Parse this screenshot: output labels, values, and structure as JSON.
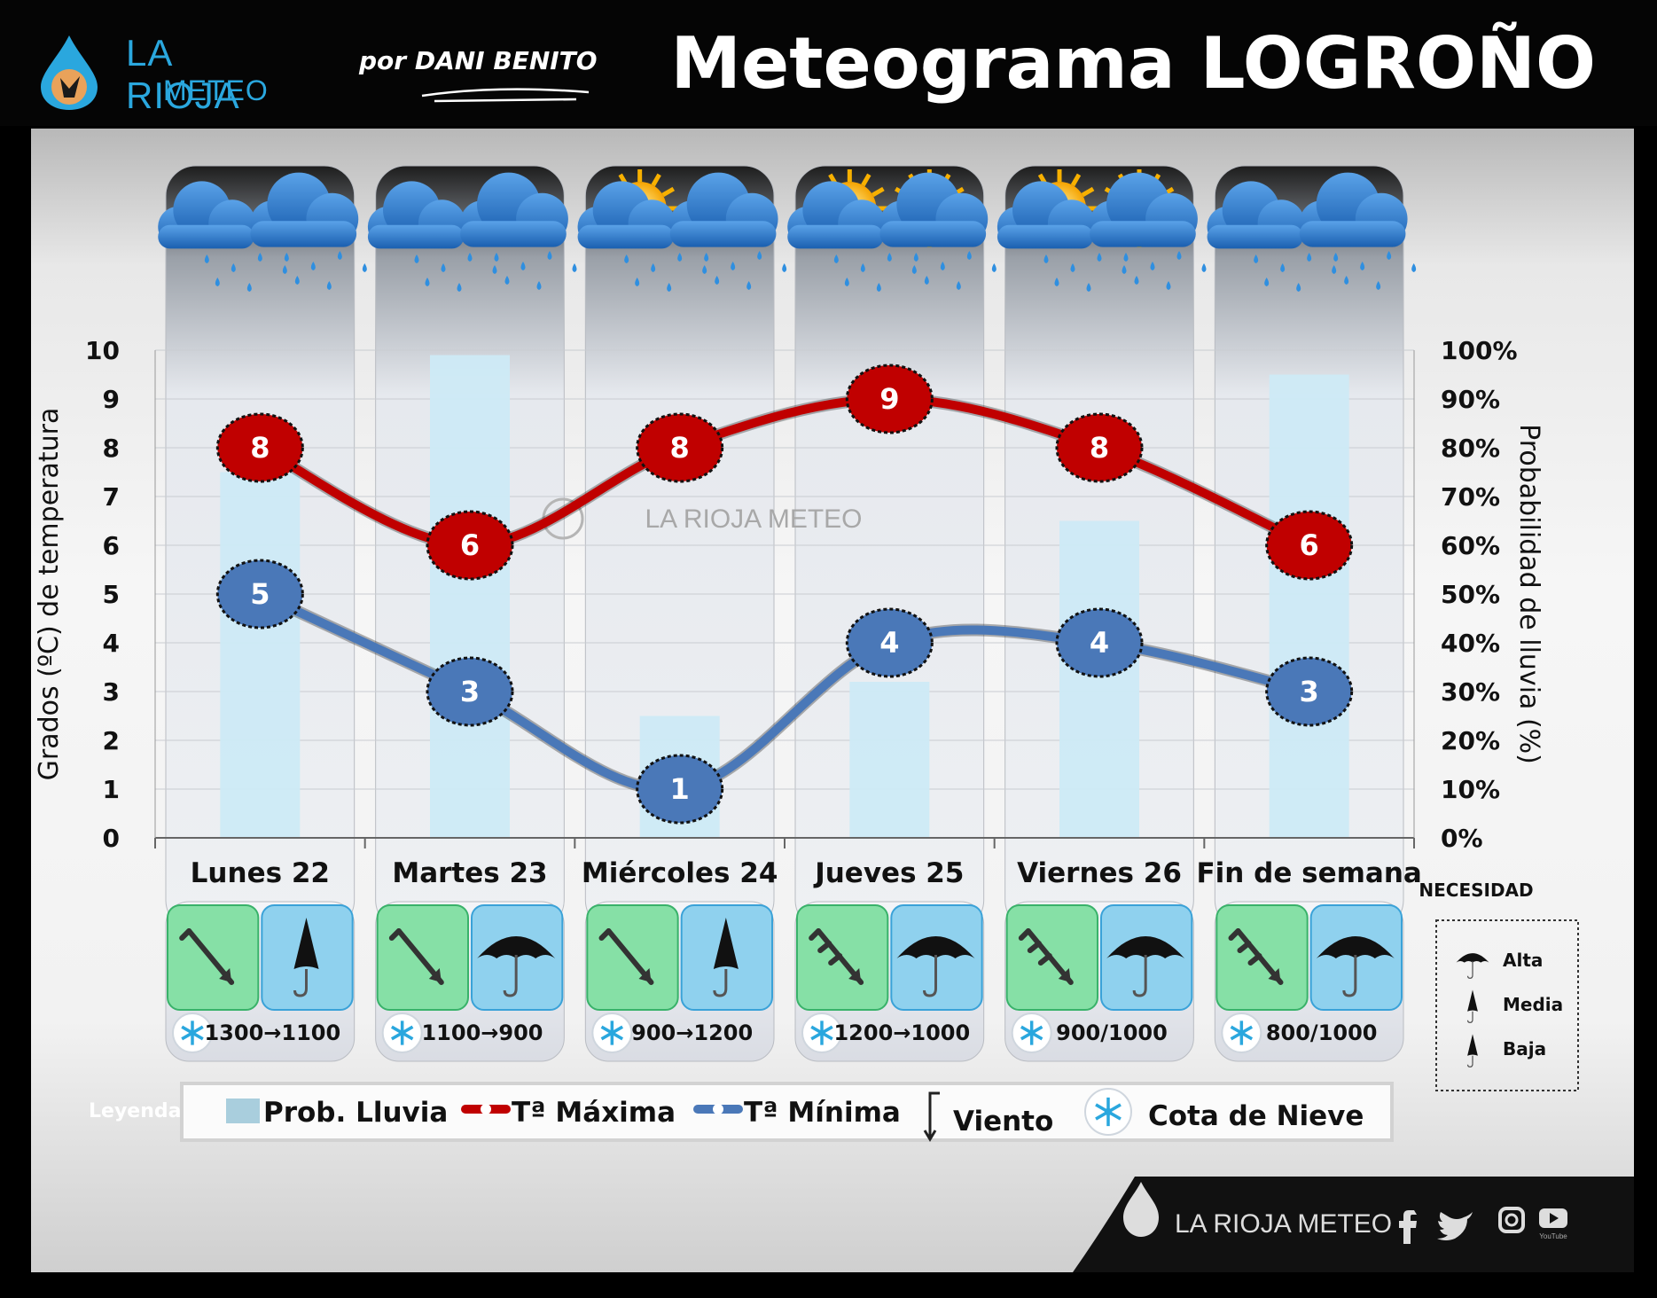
{
  "header": {
    "brand_line1": "LA RIOJA",
    "brand_line2": "METEO",
    "byline": "por DANI BENITO",
    "title": "Meteograma LOGROÑO"
  },
  "chart_data": {
    "type": "line",
    "categories": [
      "Lunes 22",
      "Martes 23",
      "Miércoles 24",
      "Jueves 25",
      "Viernes 26",
      "Fin de semana"
    ],
    "series": [
      {
        "name": "Tª Máxima",
        "type": "line",
        "axis": "left",
        "color": "#c00000",
        "values": [
          8,
          6,
          8,
          9,
          8,
          6
        ]
      },
      {
        "name": "Tª Mínima",
        "type": "line",
        "axis": "left",
        "color": "#4a78b8",
        "values": [
          5,
          3,
          1,
          4,
          4,
          3
        ]
      },
      {
        "name": "Prob. Lluvia",
        "type": "bar",
        "axis": "right",
        "color": "#cdeaf6",
        "values": [
          75,
          99,
          25,
          32,
          65,
          95
        ]
      }
    ],
    "ylabel": "Grados (ºC) de temperatura",
    "ylabel_right": "Probabilidad de lluvia (%)",
    "ylim": [
      0,
      10
    ],
    "ylim_right": [
      0,
      100
    ],
    "yticks": [
      "0",
      "1",
      "2",
      "3",
      "4",
      "5",
      "6",
      "7",
      "8",
      "9",
      "10"
    ],
    "yticks_right": [
      "0%",
      "10%",
      "20%",
      "30%",
      "40%",
      "50%",
      "60%",
      "70%",
      "80%",
      "90%",
      "100%"
    ],
    "grid": true
  },
  "days": [
    {
      "sky": "rain-cloud-icon",
      "wind": "wind-weak-icon",
      "umbrella": "umbrella-medium-icon",
      "snow_level": "1300→1100"
    },
    {
      "sky": "rain-cloud-icon",
      "wind": "wind-weak-icon",
      "umbrella": "umbrella-high-icon",
      "snow_level": "1100→900"
    },
    {
      "sky": "sun-cloud-rain-icon",
      "wind": "wind-weak-icon",
      "umbrella": "umbrella-medium-icon",
      "snow_level": "900→1200"
    },
    {
      "sky": "sun-cloud-rain-icon",
      "wind": "wind-moderate-icon",
      "umbrella": "umbrella-high-icon",
      "snow_level": "1200→1000"
    },
    {
      "sky": "sun-cloud-rain-icon",
      "wind": "wind-moderate-icon",
      "umbrella": "umbrella-high-icon",
      "snow_level": "900/1000"
    },
    {
      "sky": "rain-cloud-icon",
      "wind": "wind-moderate-icon",
      "umbrella": "umbrella-high-icon",
      "snow_level": "800/1000"
    }
  ],
  "necesidad": {
    "title": "NECESIDAD",
    "levels": [
      {
        "label": "Alta",
        "icon": "umbrella-open-icon"
      },
      {
        "label": "Media",
        "icon": "umbrella-half-icon"
      },
      {
        "label": "Baja",
        "icon": "umbrella-closed-icon"
      }
    ]
  },
  "legend": {
    "title": "Leyenda:",
    "items": [
      {
        "label": "Prob. Lluvia",
        "icon": "rain-bar-swatch"
      },
      {
        "label": "Tª Máxima",
        "icon": "max-line-swatch"
      },
      {
        "label": "Tª Mínima",
        "icon": "min-line-swatch"
      },
      {
        "label": "Viento",
        "icon": "wind-arrow-icon"
      },
      {
        "label": "Cota de Nieve",
        "icon": "snowflake-icon"
      }
    ]
  },
  "watermark": "LA RIOJA METEO",
  "footer": {
    "brand": "LA RIOJA METEO",
    "social": [
      "facebook-icon",
      "twitter-icon",
      "instagram-icon",
      "youtube-icon"
    ],
    "youtube_caption": "YouTube"
  },
  "colors": {
    "max_temp": "#c00000",
    "min_temp": "#4a78b8",
    "rain_bar": "#cdeaf6",
    "brand": "#2aa7de",
    "wind_cell": "#86e0a6",
    "umbrella_cell": "#8fd1ee"
  }
}
